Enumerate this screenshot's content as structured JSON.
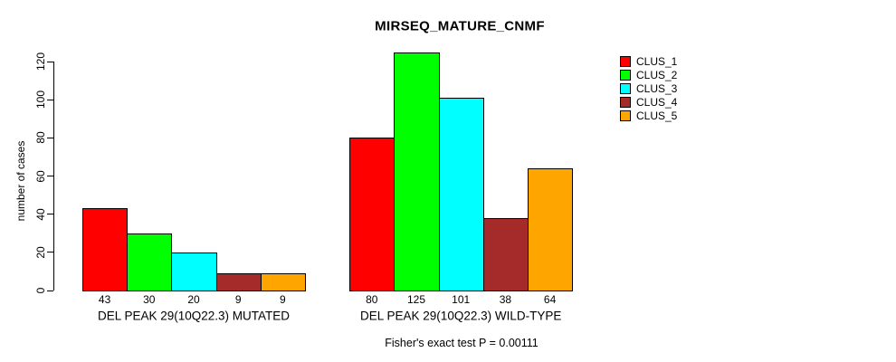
{
  "title": "MIRSEQ_MATURE_CNMF",
  "ylabel": "number of cases",
  "footer": "Fisher's exact test P = 0.00111",
  "colors": {
    "clus_1": "#FF0000",
    "clus_2": "#00FF00",
    "clus_3": "#00FFFF",
    "clus_4": "#A52A2A",
    "clus_5": "#FFA500",
    "axis": "#000000",
    "background": "#FFFFFF"
  },
  "chart_data": {
    "type": "bar",
    "title": "MIRSEQ_MATURE_CNMF",
    "xlabel": "",
    "ylabel": "number of cases",
    "ylim": [
      0,
      120
    ],
    "yticks": [
      0,
      20,
      40,
      60,
      80,
      100,
      120
    ],
    "grid": false,
    "legend_position": "right",
    "bar_value_labels_shown": true,
    "annotation": "Fisher's exact test P = 0.00111",
    "categories": [
      "DEL PEAK 29(10Q22.3) MUTATED",
      "DEL PEAK 29(10Q22.3) WILD-TYPE"
    ],
    "series": [
      {
        "name": "CLUS_1",
        "color": "#FF0000",
        "values": [
          43,
          80
        ]
      },
      {
        "name": "CLUS_2",
        "color": "#00FF00",
        "values": [
          30,
          125
        ]
      },
      {
        "name": "CLUS_3",
        "color": "#00FFFF",
        "values": [
          20,
          101
        ]
      },
      {
        "name": "CLUS_4",
        "color": "#A52A2A",
        "values": [
          9,
          38
        ]
      },
      {
        "name": "CLUS_5",
        "color": "#FFA500",
        "values": [
          9,
          64
        ]
      }
    ]
  }
}
